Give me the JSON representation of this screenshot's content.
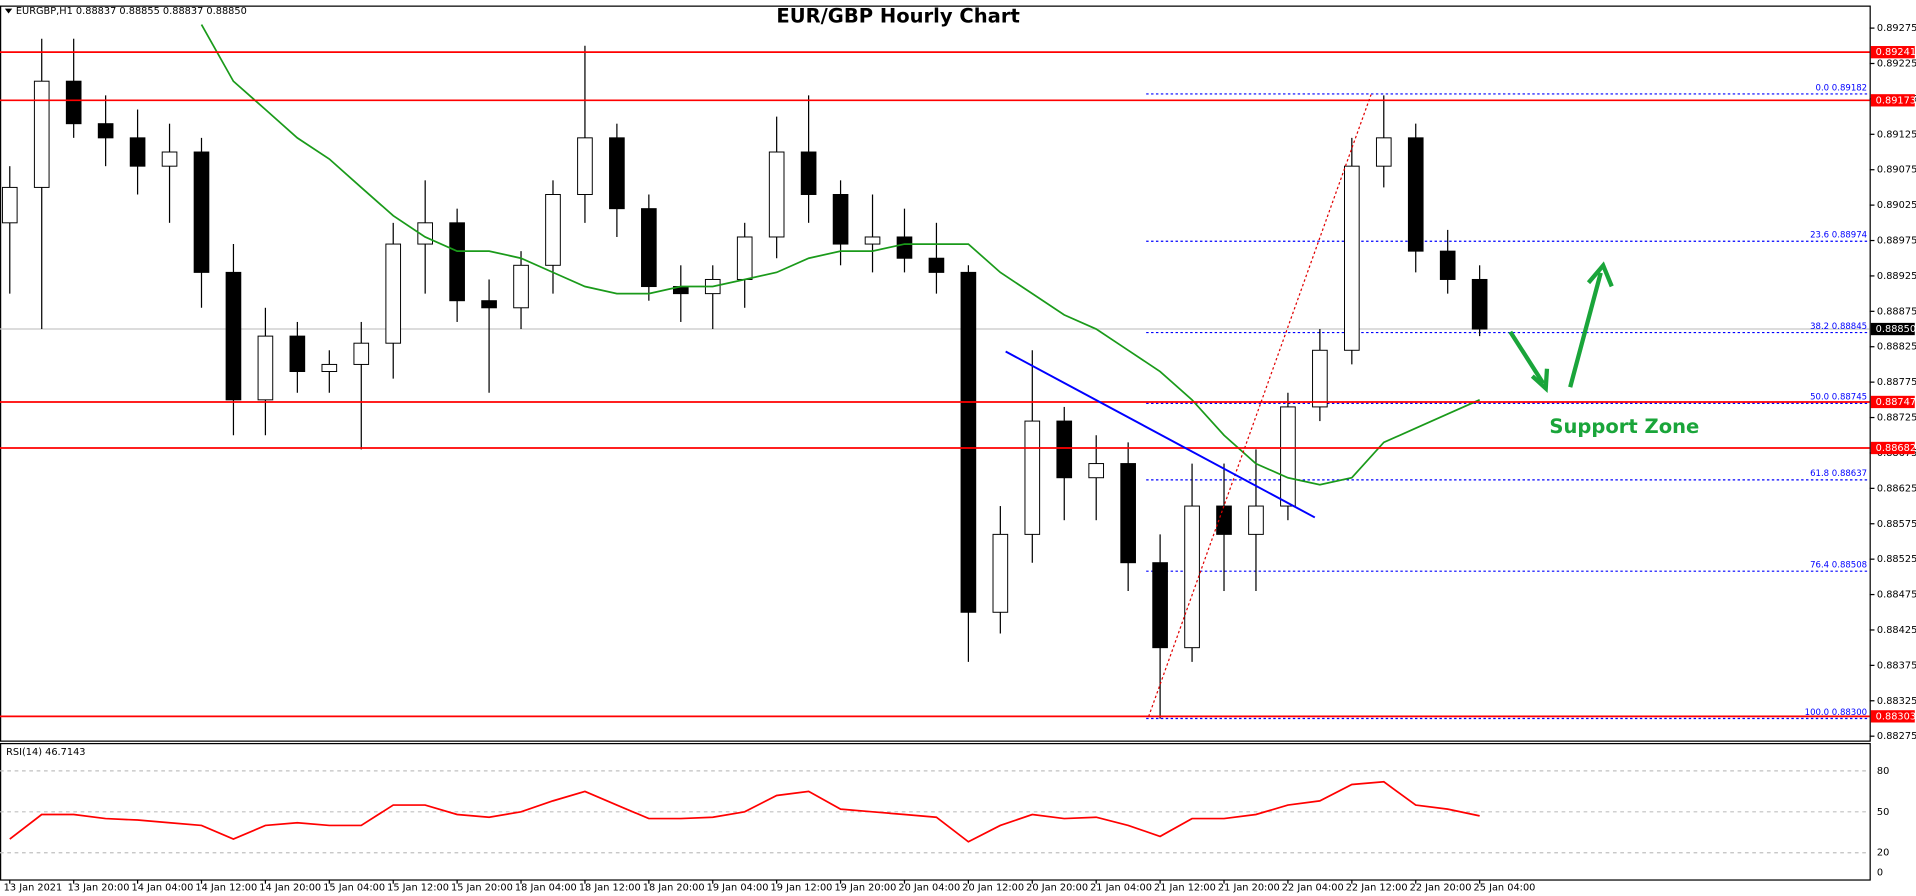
{
  "chart_data": {
    "type": "candlestick",
    "title": "EUR/GBP Hourly Chart",
    "symbol_info": "EURGBP,H1  0.88837 0.88855 0.88837 0.88850",
    "annotation": "Support Zone",
    "categories": [
      "13 Jan 2021",
      null,
      "13 Jan 20:00",
      null,
      "14 Jan 04:00",
      null,
      "14 Jan 12:00",
      null,
      "14 Jan 20:00",
      null,
      "15 Jan 04:00",
      null,
      "15 Jan 12:00",
      null,
      "15 Jan 20:00",
      null,
      "18 Jan 04:00",
      null,
      "18 Jan 12:00",
      null,
      "18 Jan 20:00",
      null,
      "19 Jan 04:00",
      null,
      "19 Jan 12:00",
      null,
      "19 Jan 20:00",
      null,
      "20 Jan 04:00",
      null,
      "20 Jan 12:00",
      null,
      "20 Jan 20:00",
      null,
      "21 Jan 04:00",
      null,
      "21 Jan 12:00",
      null,
      "21 Jan 20:00",
      null,
      "22 Jan 04:00",
      null,
      "22 Jan 12:00",
      null,
      "22 Jan 20:00",
      null,
      "25 Jan 04:00"
    ],
    "open": [
      0.89,
      0.8905,
      0.892,
      0.8914,
      0.8912,
      0.8908,
      0.891,
      0.8893,
      0.8875,
      0.8884,
      0.8879,
      0.888,
      0.8883,
      0.8897,
      0.89,
      0.8889,
      0.8888,
      0.8894,
      0.8904,
      0.8912,
      0.8902,
      0.8891,
      0.889,
      0.8892,
      0.8898,
      0.891,
      0.8904,
      0.8897,
      0.8898,
      0.8895,
      0.8893,
      0.8845,
      0.8856,
      0.8872,
      0.8864,
      0.8866,
      0.8852,
      0.884,
      0.886,
      0.8856,
      0.886,
      0.8874,
      0.8882,
      0.8908,
      0.8912,
      0.8896,
      0.8892
    ],
    "high": [
      0.8908,
      0.8926,
      0.8926,
      0.8918,
      0.8916,
      0.8914,
      0.8912,
      0.8897,
      0.8888,
      0.8886,
      0.8882,
      0.8886,
      0.89,
      0.8906,
      0.8902,
      0.8892,
      0.8896,
      0.8906,
      0.8925,
      0.8914,
      0.8904,
      0.8894,
      0.8894,
      0.89,
      0.8915,
      0.8918,
      0.8906,
      0.8904,
      0.8902,
      0.89,
      0.8894,
      0.886,
      0.8882,
      0.8874,
      0.887,
      0.8869,
      0.8856,
      0.8866,
      0.8866,
      0.8868,
      0.8876,
      0.8885,
      0.8912,
      0.8918,
      0.8914,
      0.8899,
      0.8894
    ],
    "low": [
      0.889,
      0.8885,
      0.8912,
      0.8908,
      0.8904,
      0.89,
      0.8888,
      0.887,
      0.887,
      0.8876,
      0.8876,
      0.8868,
      0.8878,
      0.889,
      0.8886,
      0.8876,
      0.8885,
      0.889,
      0.89,
      0.8898,
      0.8889,
      0.8886,
      0.8885,
      0.8888,
      0.8895,
      0.89,
      0.8894,
      0.8893,
      0.8893,
      0.889,
      0.8838,
      0.8842,
      0.8852,
      0.8858,
      0.8858,
      0.8848,
      0.883,
      0.8838,
      0.8848,
      0.8848,
      0.8858,
      0.8872,
      0.888,
      0.8905,
      0.8893,
      0.889,
      0.8884
    ],
    "close": [
      0.8905,
      0.892,
      0.8914,
      0.8912,
      0.8908,
      0.891,
      0.8893,
      0.8875,
      0.8884,
      0.8879,
      0.888,
      0.8883,
      0.8897,
      0.89,
      0.8889,
      0.8888,
      0.8894,
      0.8904,
      0.8912,
      0.8902,
      0.8891,
      0.889,
      0.8892,
      0.8898,
      0.891,
      0.8904,
      0.8897,
      0.8898,
      0.8895,
      0.8893,
      0.8845,
      0.8856,
      0.8872,
      0.8864,
      0.8866,
      0.8852,
      0.884,
      0.886,
      0.8856,
      0.886,
      0.8874,
      0.8882,
      0.8908,
      0.8912,
      0.8896,
      0.8892,
      0.8885
    ],
    "ylim": [
      0.88268,
      0.89306
    ],
    "yticks": [
      0.89275,
      0.89225,
      0.89175,
      0.89125,
      0.89075,
      0.89025,
      0.88975,
      0.88925,
      0.88875,
      0.88825,
      0.88775,
      0.88725,
      0.88675,
      0.88625,
      0.88575,
      0.88525,
      0.88475,
      0.88425,
      0.88375,
      0.88325,
      0.88275
    ],
    "ma": {
      "color": "#1a9a1a",
      "values": [
        null,
        null,
        null,
        null,
        null,
        null,
        0.8928,
        0.892,
        0.8916,
        0.8912,
        0.8909,
        0.8905,
        0.8901,
        0.8898,
        0.8896,
        0.8896,
        0.8895,
        0.8893,
        0.8891,
        0.889,
        0.889,
        0.8891,
        0.8891,
        0.8892,
        0.8893,
        0.8895,
        0.8896,
        0.8896,
        0.8897,
        0.8897,
        0.8897,
        0.8893,
        0.889,
        0.8887,
        0.8885,
        0.8882,
        0.8879,
        0.8875,
        0.887,
        0.8866,
        0.8864,
        0.8863,
        0.8864,
        0.8869,
        0.8871,
        0.8873,
        0.8875
      ]
    },
    "levels": {
      "color": "#ff0000",
      "values": [
        0.89241,
        0.89173,
        0.88747,
        0.88682,
        0.88303
      ]
    },
    "current_price": {
      "value": 0.8885,
      "label": "0.88850"
    },
    "fib_levels": {
      "color": "#0000ff",
      "values": [
        {
          "value": 0.89182,
          "label": "0.0 0.89182"
        },
        {
          "value": 0.88974,
          "label": "23.6 0.88974"
        },
        {
          "value": 0.88845,
          "label": "38.2 0.88845"
        },
        {
          "value": 0.88745,
          "label": "50.0 0.88745"
        },
        {
          "value": 0.88637,
          "label": "61.8 0.88637"
        },
        {
          "value": 0.88508,
          "label": "76.4 0.88508"
        },
        {
          "value": 0.883,
          "label": "100.0 0.88300"
        }
      ]
    },
    "rsi": {
      "label": "RSI(14) 46.7143",
      "color": "#ff0000",
      "ylim": [
        0,
        100
      ],
      "yticks": [
        80,
        50,
        20,
        0
      ],
      "values": [
        30,
        48,
        48,
        45,
        44,
        42,
        40,
        30,
        40,
        42,
        40,
        40,
        55,
        55,
        48,
        46,
        50,
        58,
        65,
        55,
        45,
        45,
        46,
        50,
        62,
        65,
        52,
        50,
        48,
        46,
        28,
        40,
        48,
        45,
        46,
        40,
        32,
        45,
        45,
        48,
        55,
        58,
        70,
        72,
        55,
        52,
        47
      ]
    }
  }
}
